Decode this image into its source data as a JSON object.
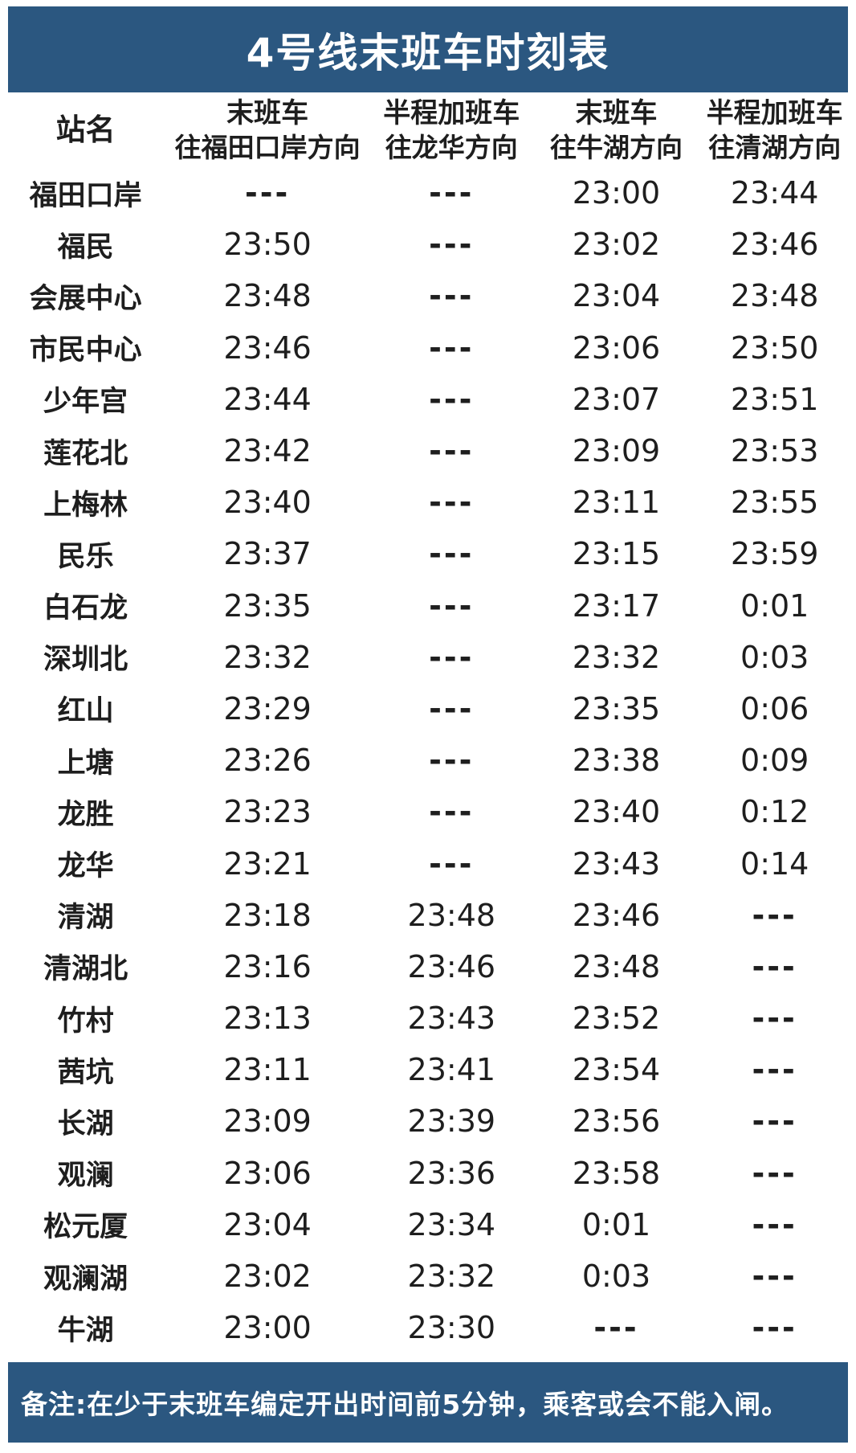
{
  "title": "4号线末班车时刻表",
  "table": {
    "columns": [
      {
        "line1": "站名",
        "line2": ""
      },
      {
        "line1": "末班车",
        "line2": "往福田口岸方向"
      },
      {
        "line1": "半程加班车",
        "line2": "往龙华方向"
      },
      {
        "line1": "末班车",
        "line2": "往牛湖方向"
      },
      {
        "line1": "半程加班车",
        "line2": "往清湖方向"
      }
    ],
    "rows": [
      {
        "station": "福田口岸",
        "times": [
          "---",
          "---",
          "23:00",
          "23:44"
        ]
      },
      {
        "station": "福民",
        "times": [
          "23:50",
          "---",
          "23:02",
          "23:46"
        ]
      },
      {
        "station": "会展中心",
        "times": [
          "23:48",
          "---",
          "23:04",
          "23:48"
        ]
      },
      {
        "station": "市民中心",
        "times": [
          "23:46",
          "---",
          "23:06",
          "23:50"
        ]
      },
      {
        "station": "少年宫",
        "times": [
          "23:44",
          "---",
          "23:07",
          "23:51"
        ]
      },
      {
        "station": "莲花北",
        "times": [
          "23:42",
          "---",
          "23:09",
          "23:53"
        ]
      },
      {
        "station": "上梅林",
        "times": [
          "23:40",
          "---",
          "23:11",
          "23:55"
        ]
      },
      {
        "station": "民乐",
        "times": [
          "23:37",
          "---",
          "23:15",
          "23:59"
        ]
      },
      {
        "station": "白石龙",
        "times": [
          "23:35",
          "---",
          "23:17",
          "0:01"
        ]
      },
      {
        "station": "深圳北",
        "times": [
          "23:32",
          "---",
          "23:32",
          "0:03"
        ]
      },
      {
        "station": "红山",
        "times": [
          "23:29",
          "---",
          "23:35",
          "0:06"
        ]
      },
      {
        "station": "上塘",
        "times": [
          "23:26",
          "---",
          "23:38",
          "0:09"
        ]
      },
      {
        "station": "龙胜",
        "times": [
          "23:23",
          "---",
          "23:40",
          "0:12"
        ]
      },
      {
        "station": "龙华",
        "times": [
          "23:21",
          "---",
          "23:43",
          "0:14"
        ]
      },
      {
        "station": "清湖",
        "times": [
          "23:18",
          "23:48",
          "23:46",
          "---"
        ]
      },
      {
        "station": "清湖北",
        "times": [
          "23:16",
          "23:46",
          "23:48",
          "---"
        ]
      },
      {
        "station": "竹村",
        "times": [
          "23:13",
          "23:43",
          "23:52",
          "---"
        ]
      },
      {
        "station": "茜坑",
        "times": [
          "23:11",
          "23:41",
          "23:54",
          "---"
        ]
      },
      {
        "station": "长湖",
        "times": [
          "23:09",
          "23:39",
          "23:56",
          "---"
        ]
      },
      {
        "station": "观澜",
        "times": [
          "23:06",
          "23:36",
          "23:58",
          "---"
        ]
      },
      {
        "station": "松元厦",
        "times": [
          "23:04",
          "23:34",
          "0:01",
          "---"
        ]
      },
      {
        "station": "观澜湖",
        "times": [
          "23:02",
          "23:32",
          "0:03",
          "---"
        ]
      },
      {
        "station": "牛湖",
        "times": [
          "23:00",
          "23:30",
          "---",
          "---"
        ]
      }
    ]
  },
  "footer": {
    "note": "备注:在少于末班车编定开出时间前5分钟，乘客或会不能入闸。"
  },
  "colors": {
    "bar_blue": "#2b5780",
    "text_dark": "#1e1e1e",
    "background": "#ffffff"
  }
}
